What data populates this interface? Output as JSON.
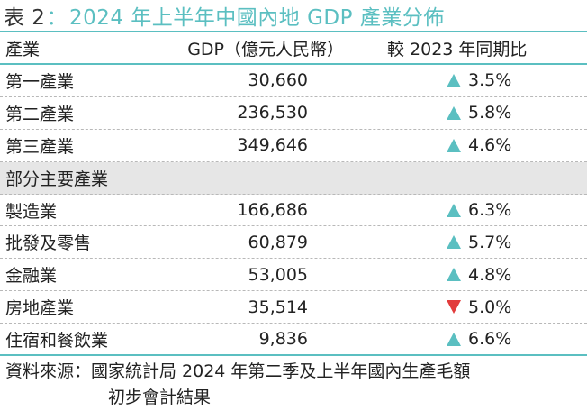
{
  "title": {
    "label": "表 2",
    "colon": "：",
    "text": "2024 年上半年中國內地 GDP 產業分佈"
  },
  "colors": {
    "accent": "#5bbfc1",
    "increase": "#5bbfc1",
    "decrease": "#e23c3c",
    "section_bg": "#e6e6e6"
  },
  "table": {
    "headers": {
      "name": "產業",
      "gdp": "GDP（億元人民幣）",
      "growth": "較 2023 年同期比"
    },
    "rows": [
      {
        "name": "第一產業",
        "gdp": "30,660",
        "growth": "3.5%",
        "direction": "up"
      },
      {
        "name": "第二產業",
        "gdp": "236,530",
        "growth": "5.8%",
        "direction": "up"
      },
      {
        "name": "第三產業",
        "gdp": "349,646",
        "growth": "4.6%",
        "direction": "up"
      }
    ],
    "section_label": "部分主要產業",
    "sub_rows": [
      {
        "name": "製造業",
        "gdp": "166,686",
        "growth": "6.3%",
        "direction": "up"
      },
      {
        "name": "批發及零售",
        "gdp": "60,879",
        "growth": "5.7%",
        "direction": "up"
      },
      {
        "name": "金融業",
        "gdp": "53,005",
        "growth": "4.8%",
        "direction": "up"
      },
      {
        "name": "房地產業",
        "gdp": "35,514",
        "growth": "5.0%",
        "direction": "down"
      },
      {
        "name": "住宿和餐飲業",
        "gdp": "9,836",
        "growth": "6.6%",
        "direction": "up"
      }
    ]
  },
  "source": {
    "line1": "資料來源：國家統計局 2024 年第二季及上半年國內生產毛額",
    "line2": "初步會計結果"
  }
}
